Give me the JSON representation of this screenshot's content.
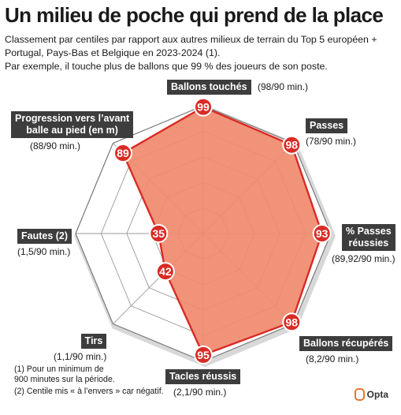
{
  "title": "Un milieu de poche qui prend de la place",
  "subtitle_lines": [
    "Classement par centiles par rapport aux autres milieux de terrain du Top 5 européen +",
    "Portugal, Pays-Bas et Belgique en 2023-2024 (1).",
    "Par exemple, il touche plus de ballons que 99 % des joueurs de son poste."
  ],
  "colors": {
    "fill": "#f08a6c",
    "stroke": "#d92b25",
    "marker": "#d92b25",
    "grid": "#9a9a9a",
    "label_box": "#3d3d3d"
  },
  "chart_data": {
    "type": "radar",
    "scale": [
      0,
      100
    ],
    "axes": [
      {
        "label": "Ballons touchés",
        "percentile": 99,
        "value_text": "(98/90 min.)"
      },
      {
        "label": "Passes",
        "percentile": 98,
        "value_text": "(78/90 min.)"
      },
      {
        "label": "% Passes réussies",
        "percentile": 93,
        "value_text": "(89,92/90 min.)"
      },
      {
        "label": "Ballons récupérés",
        "percentile": 98,
        "value_text": "(8,2/90 min.)"
      },
      {
        "label": "Tacles réussis",
        "percentile": 95,
        "value_text": "(2,1/90 min.)"
      },
      {
        "label": "Tirs",
        "percentile": 42,
        "value_text": "(1,1/90 min.)"
      },
      {
        "label": "Fautes (2)",
        "percentile": 35,
        "value_text": "(1,5/90 min.)"
      },
      {
        "label": "Progression vers l’avant balle au pied (en m)",
        "percentile": 89,
        "value_text": "(88/90 min.)"
      }
    ]
  },
  "labels": {
    "a0": {
      "name": "Ballons touchés",
      "value": "(98/90 min.)"
    },
    "a1": {
      "name": "Passes",
      "value": "(78/90 min.)"
    },
    "a2_l1": "% Passes",
    "a2_l2": "réussies",
    "a2_value": "(89,92/90 min.)",
    "a3": {
      "name": "Ballons récupérés",
      "value": "(8,2/90 min.)"
    },
    "a4": {
      "name": "Tacles réussis",
      "value": "(2,1/90 min.)"
    },
    "a5": {
      "name": "Tirs",
      "value": "(1,1/90 min.)"
    },
    "a6": {
      "name": "Fautes (2)",
      "value": "(1,5/90 min.)"
    },
    "a7_l1": "Progression vers l’avant",
    "a7_l2": "balle au pied (en m)",
    "a7_value": "(88/90 min.)"
  },
  "footnotes": [
    "(1) Pour un minimum de",
    "900 minutes sur la période.",
    "(2) Centile mis « à l’envers » car négatif."
  ],
  "source": "Opta"
}
